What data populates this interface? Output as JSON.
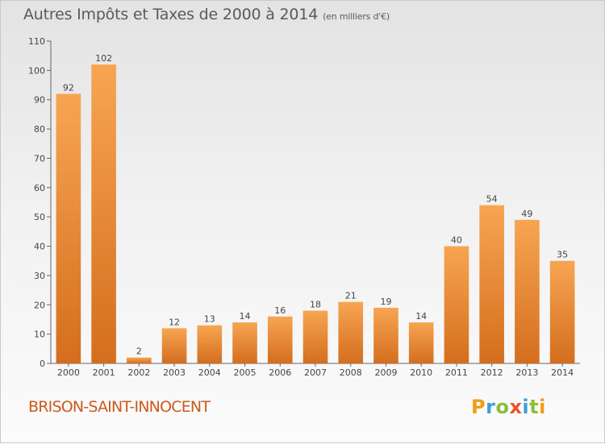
{
  "header": {
    "title": "Autres Impôts et Taxes de 2000 à 2014",
    "subtitle": "(en milliers d'€)"
  },
  "footer": {
    "commune": "BRISON-SAINT-INNOCENT",
    "logo_text": "Proxiti"
  },
  "colors": {
    "bar_light": "#f7a552",
    "bar_dark": "#d46e1e",
    "axis": "#666666",
    "text": "#444444",
    "commune_text": "#cc5a1e",
    "logo_letters": [
      "#f39c12",
      "#3aa0d8",
      "#8bbf3a",
      "#e9532b",
      "#3aa0d8",
      "#8bbf3a",
      "#f39c12"
    ]
  },
  "chart_data": {
    "type": "bar",
    "title": "Autres Impôts et Taxes de 2000 à 2014",
    "subtitle": "(en milliers d'€)",
    "categories": [
      "2000",
      "2001",
      "2002",
      "2003",
      "2004",
      "2005",
      "2006",
      "2007",
      "2008",
      "2009",
      "2010",
      "2011",
      "2012",
      "2013",
      "2014"
    ],
    "values": [
      92,
      102,
      2,
      12,
      13,
      14,
      16,
      18,
      21,
      19,
      14,
      40,
      54,
      49,
      35
    ],
    "ylim": [
      0,
      110
    ],
    "yticks": [
      0,
      10,
      20,
      30,
      40,
      50,
      60,
      70,
      80,
      90,
      100,
      110
    ],
    "xlabel": "",
    "ylabel": "",
    "data_labels": true,
    "grid": false,
    "legend": "none"
  }
}
